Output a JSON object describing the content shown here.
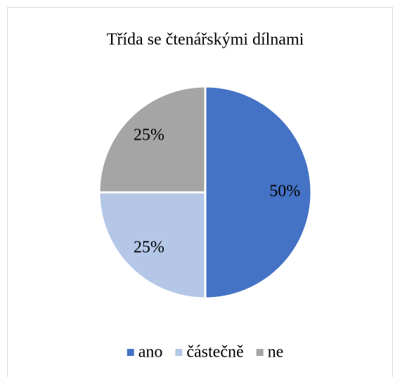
{
  "chart_data": {
    "type": "pie",
    "title": "Třída se čtenářskými dílnami",
    "categories": [
      "ano",
      "částečně",
      "ne"
    ],
    "values": [
      50,
      25,
      25
    ],
    "value_labels": [
      "50%",
      "25%",
      "25%"
    ],
    "colors": [
      "#4472c4",
      "#b4c7e7",
      "#a5a5a5"
    ],
    "legend": "bottom"
  }
}
